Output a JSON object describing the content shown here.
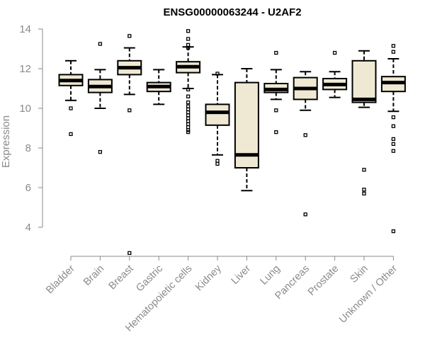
{
  "chart_data": {
    "type": "boxplot",
    "title": "ENSG00000063244 - U2AF2",
    "xlabel": "",
    "ylabel": "Expression",
    "ylim": [
      2.6,
      14.1
    ],
    "yticks": [
      4,
      6,
      8,
      10,
      12,
      14
    ],
    "box_fill": "#efe9d3",
    "categories": [
      "Bladder",
      "Brain",
      "Breast",
      "Gastric",
      "Hematopoietic cells",
      "Kidney",
      "Liver",
      "Lung",
      "Pancreas",
      "Prostate",
      "Skin",
      "Unknown / Other"
    ],
    "boxes": [
      {
        "q1": 11.15,
        "median": 11.4,
        "q3": 11.7,
        "whislo": 10.4,
        "whishi": 12.4,
        "outliers": [
          10.0,
          8.7
        ]
      },
      {
        "q1": 10.8,
        "median": 11.1,
        "q3": 11.45,
        "whislo": 10.0,
        "whishi": 11.95,
        "outliers": [
          13.25,
          7.8
        ]
      },
      {
        "q1": 11.7,
        "median": 12.05,
        "q3": 12.4,
        "whislo": 10.7,
        "whishi": 13.05,
        "outliers": [
          13.65,
          9.9,
          2.7
        ]
      },
      {
        "q1": 10.85,
        "median": 11.1,
        "q3": 11.3,
        "whislo": 10.2,
        "whishi": 11.95,
        "outliers": []
      },
      {
        "q1": 11.8,
        "median": 12.1,
        "q3": 12.35,
        "whislo": 11.0,
        "whishi": 13.1,
        "outliers": [
          13.9,
          13.5,
          13.2,
          13.05,
          10.95,
          10.6,
          10.3,
          10.1,
          9.95,
          9.8,
          9.65,
          9.5,
          9.35,
          9.2,
          9.05,
          8.9,
          8.8
        ]
      },
      {
        "q1": 9.15,
        "median": 9.8,
        "q3": 10.2,
        "whislo": 7.65,
        "whishi": 11.7,
        "outliers": [
          11.75,
          7.35,
          7.2
        ]
      },
      {
        "q1": 7.0,
        "median": 7.65,
        "q3": 11.3,
        "whislo": 5.85,
        "whishi": 12.0,
        "outliers": []
      },
      {
        "q1": 10.8,
        "median": 10.95,
        "q3": 11.25,
        "whislo": 10.45,
        "whishi": 11.95,
        "outliers": [
          12.8,
          9.9,
          8.8
        ]
      },
      {
        "q1": 10.45,
        "median": 11.0,
        "q3": 11.55,
        "whislo": 9.9,
        "whishi": 11.85,
        "outliers": [
          8.65,
          4.65
        ]
      },
      {
        "q1": 10.95,
        "median": 11.2,
        "q3": 11.5,
        "whislo": 10.55,
        "whishi": 11.85,
        "outliers": [
          12.8
        ]
      },
      {
        "q1": 10.3,
        "median": 10.45,
        "q3": 12.4,
        "whislo": 10.05,
        "whishi": 12.9,
        "outliers": [
          6.9,
          5.9,
          5.7
        ]
      },
      {
        "q1": 10.85,
        "median": 11.3,
        "q3": 11.6,
        "whislo": 9.85,
        "whishi": 12.5,
        "outliers": [
          13.15,
          12.85,
          9.55,
          9.1,
          8.45,
          8.2,
          7.85,
          3.8
        ]
      }
    ]
  }
}
